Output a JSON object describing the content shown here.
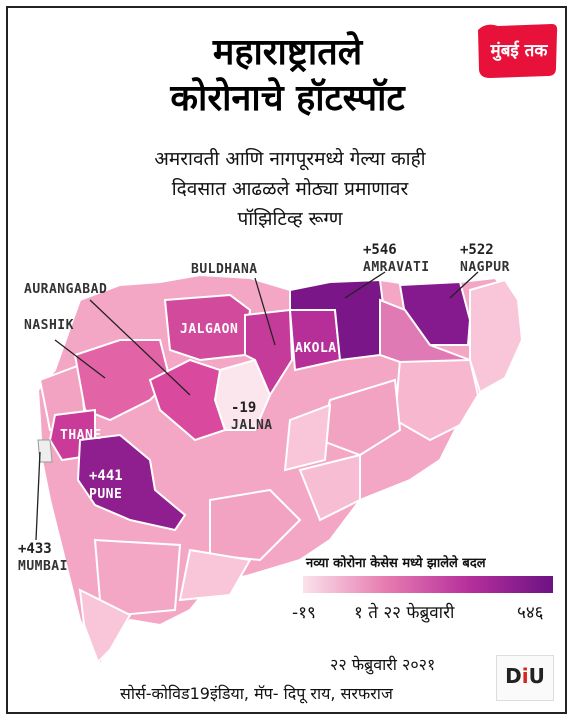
{
  "title": {
    "line1": "महाराष्ट्रातले",
    "line2": "कोरोनाचे हॉटस्पॉट"
  },
  "subtitle": {
    "line1": "अमरावती आणि नागपूरमध्ये गेल्या काही",
    "line2": "दिवसात आढळले मोठ्या प्रमाणावर",
    "line3": "पॉझिटिव्ह रूग्ण"
  },
  "logo": {
    "text": "मुंबई तक",
    "color": "#e8113a"
  },
  "districts": {
    "amravati": {
      "name": "AMRAVATI",
      "change": "+546"
    },
    "nagpur": {
      "name": "NAGPUR",
      "change": "+522"
    },
    "buldhana": {
      "name": "BULDHANA"
    },
    "aurangabad": {
      "name": "AURANGABAD"
    },
    "nashik": {
      "name": "NASHIK"
    },
    "jalgaon": {
      "name": "JALGAON"
    },
    "akola": {
      "name": "AKOLA"
    },
    "jalna": {
      "name": "JALNA",
      "change": "-19"
    },
    "thane": {
      "name": "THANE"
    },
    "pune": {
      "name": "PUNE",
      "change": "+441"
    },
    "mumbai": {
      "name": "MUMBAI",
      "change": "+433"
    }
  },
  "legend": {
    "title": "नव्या कोरोना केसेस मध्ये झालेले बदल",
    "min": "-१९",
    "period": "१ ते २२ फेब्रुवारी",
    "max": "५४६",
    "colors": [
      "#fbe2ea",
      "#e67bb0",
      "#b52f9c",
      "#6d1283"
    ]
  },
  "date": "२२ फेब्रुवारी २०२१",
  "source": "सोर्स-कोविड19इंडिया, मॅप- दिपू राय, सरफराज",
  "source_logo": {
    "text_d": "D",
    "text_i": "i",
    "text_u": "U"
  }
}
